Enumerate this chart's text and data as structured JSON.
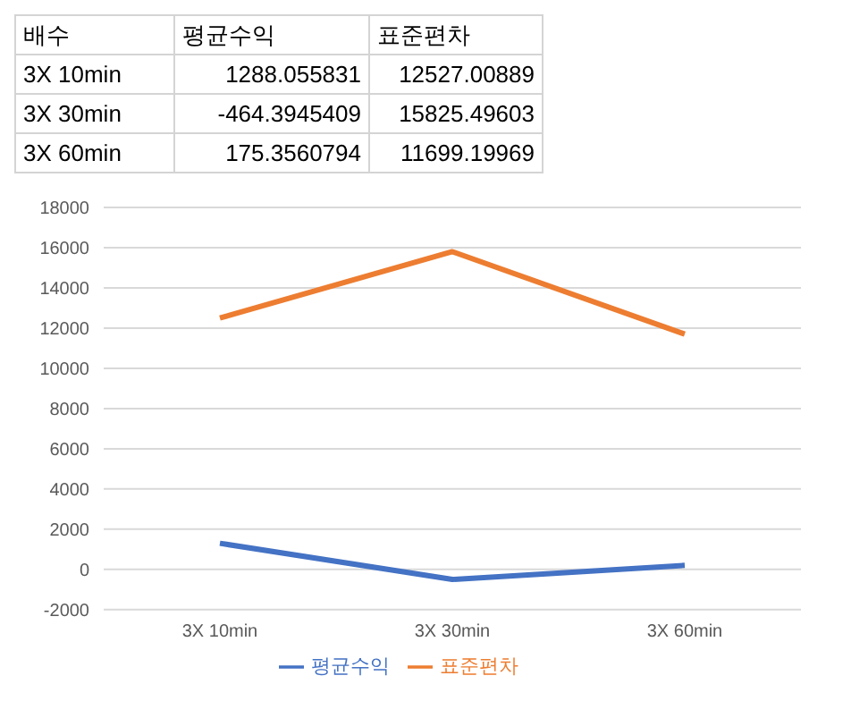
{
  "chart_data": {
    "type": "line",
    "categories": [
      "3X 10min",
      "3X 30min",
      "3X 60min"
    ],
    "series": [
      {
        "name": "평균수익",
        "color": "#4472c4",
        "values": [
          1300,
          -500,
          200
        ]
      },
      {
        "name": "표준편차",
        "color": "#ed7d31",
        "values": [
          12500,
          15800,
          11700
        ]
      }
    ],
    "ylim": [
      -2000,
      18000
    ],
    "yticks": [
      -2000,
      0,
      2000,
      4000,
      6000,
      8000,
      10000,
      12000,
      14000,
      16000,
      18000
    ],
    "grid": "y",
    "legend": "bottom",
    "marker": "none",
    "line_style": "solid",
    "annotations": [
      "배수",
      "1288.055831",
      "12527.00889",
      "-464.3945409",
      "15825.49603",
      "175.3560794",
      "11699.19969"
    ]
  }
}
